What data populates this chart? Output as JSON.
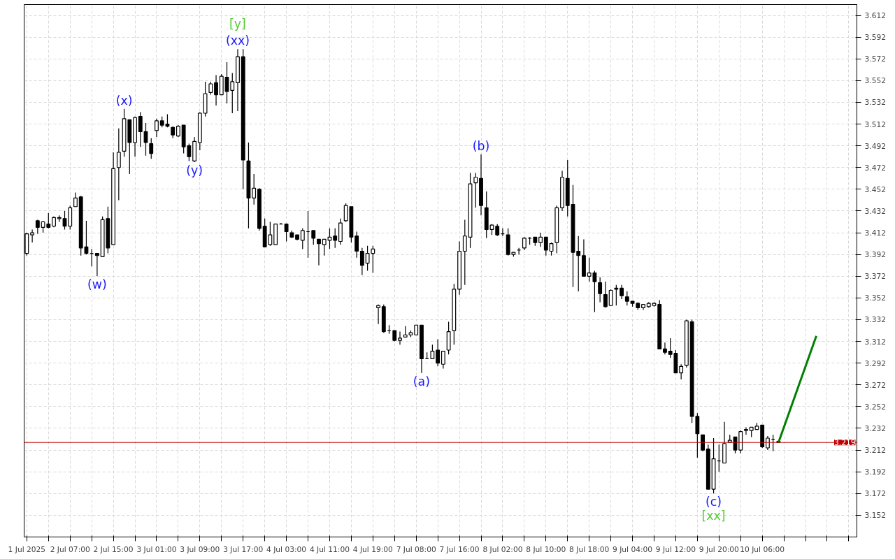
{
  "chart_data": {
    "type": "candlestick",
    "categories": [
      "1 Jul 2025",
      null,
      null,
      null,
      null,
      null,
      null,
      null,
      "2 Jul 07:00",
      null,
      null,
      null,
      null,
      null,
      null,
      null,
      "2 Jul 15:00",
      null,
      null,
      null,
      null,
      null,
      null,
      null,
      "3 Jul 01:00",
      null,
      null,
      null,
      null,
      null,
      null,
      null,
      "3 Jul 09:00",
      null,
      null,
      null,
      null,
      null,
      null,
      null,
      "3 Jul 17:00",
      null,
      null,
      null,
      null,
      null,
      null,
      null,
      "4 Jul 03:00",
      null,
      null,
      null,
      null,
      null,
      null,
      null,
      "4 Jul 11:00",
      null,
      null,
      null,
      null,
      null,
      null,
      null,
      "4 Jul 19:00",
      null,
      null,
      null,
      null,
      null,
      null,
      null,
      "7 Jul 08:00",
      null,
      null,
      null,
      null,
      null,
      null,
      null,
      "7 Jul 16:00",
      null,
      null,
      null,
      null,
      null,
      null,
      null,
      "8 Jul 02:00",
      null,
      null,
      null,
      null,
      null,
      null,
      null,
      "8 Jul 10:00",
      null,
      null,
      null,
      null,
      null,
      null,
      null,
      "8 Jul 18:00",
      null,
      null,
      null,
      null,
      null,
      null,
      null,
      "9 Jul 04:00",
      null,
      null,
      null,
      null,
      null,
      null,
      null,
      "9 Jul 12:00",
      null,
      null,
      null,
      null,
      null,
      null,
      null,
      "9 Jul 20:00",
      null,
      null,
      null,
      null,
      null,
      null,
      null,
      "10 Jul 06:00",
      null,
      null,
      null,
      null,
      null,
      null,
      null,
      null,
      null,
      null,
      null,
      null,
      null,
      null,
      null,
      null,
      null
    ],
    "ohlc": [
      [
        3.393,
        3.412,
        3.391,
        3.411
      ],
      [
        3.41,
        3.415,
        3.403,
        3.412
      ],
      [
        3.423,
        3.424,
        3.411,
        3.417
      ],
      [
        3.417,
        3.423,
        3.412,
        3.422
      ],
      [
        3.42,
        3.43,
        3.416,
        3.417
      ],
      [
        3.418,
        3.427,
        3.417,
        3.426
      ],
      [
        3.425,
        3.428,
        3.422,
        3.426
      ],
      [
        3.425,
        3.432,
        3.415,
        3.418
      ],
      [
        3.418,
        3.437,
        3.415,
        3.435
      ],
      [
        3.436,
        3.449,
        3.436,
        3.444
      ],
      [
        3.445,
        3.446,
        3.391,
        3.398
      ],
      [
        3.399,
        3.423,
        3.392,
        3.393
      ],
      [
        3.393,
        3.397,
        3.381,
        3.393
      ],
      [
        3.393,
        3.393,
        3.372,
        3.391
      ],
      [
        3.39,
        3.427,
        3.39,
        3.424
      ],
      [
        3.425,
        3.436,
        3.393,
        3.398
      ],
      [
        3.401,
        3.486,
        3.401,
        3.471
      ],
      [
        3.472,
        3.508,
        3.442,
        3.486
      ],
      [
        3.487,
        3.526,
        3.482,
        3.517
      ],
      [
        3.516,
        3.516,
        3.466,
        3.495
      ],
      [
        3.495,
        3.519,
        3.482,
        3.518
      ],
      [
        3.519,
        3.523,
        3.491,
        3.505
      ],
      [
        3.505,
        3.513,
        3.483,
        3.495
      ],
      [
        3.494,
        3.499,
        3.48,
        3.485
      ],
      [
        3.506,
        3.517,
        3.5,
        3.515
      ],
      [
        3.515,
        3.519,
        3.509,
        3.511
      ],
      [
        3.512,
        3.521,
        3.509,
        3.51
      ],
      [
        3.509,
        3.51,
        3.499,
        3.502
      ],
      [
        3.501,
        3.511,
        3.5,
        3.51
      ],
      [
        3.511,
        3.511,
        3.485,
        3.491
      ],
      [
        3.492,
        3.494,
        3.478,
        3.482
      ],
      [
        3.478,
        3.5,
        3.477,
        3.496
      ],
      [
        3.495,
        3.523,
        3.488,
        3.522
      ],
      [
        3.522,
        3.551,
        3.519,
        3.54
      ],
      [
        3.541,
        3.551,
        3.539,
        3.549
      ],
      [
        3.55,
        3.557,
        3.529,
        3.539
      ],
      [
        3.539,
        3.558,
        3.539,
        3.556
      ],
      [
        3.555,
        3.569,
        3.531,
        3.542
      ],
      [
        3.543,
        3.559,
        3.522,
        3.551
      ],
      [
        3.55,
        3.581,
        3.524,
        3.574
      ],
      [
        3.574,
        3.581,
        3.452,
        3.479
      ],
      [
        3.478,
        3.495,
        3.416,
        3.444
      ],
      [
        3.444,
        3.466,
        3.438,
        3.453
      ],
      [
        3.452,
        3.453,
        3.414,
        3.416
      ],
      [
        3.418,
        3.425,
        3.399,
        3.399
      ],
      [
        3.401,
        3.422,
        3.4,
        3.41
      ],
      [
        3.401,
        3.42,
        3.401,
        3.42
      ],
      [
        3.42,
        3.421,
        3.42,
        3.42
      ],
      [
        3.42,
        3.42,
        3.404,
        3.413
      ],
      [
        3.412,
        3.414,
        3.407,
        3.408
      ],
      [
        3.41,
        3.41,
        3.405,
        3.406
      ],
      [
        3.405,
        3.416,
        3.397,
        3.414
      ],
      [
        3.413,
        3.432,
        3.389,
        3.413
      ],
      [
        3.414,
        3.414,
        3.401,
        3.407
      ],
      [
        3.406,
        3.406,
        3.382,
        3.402
      ],
      [
        3.401,
        3.406,
        3.391,
        3.406
      ],
      [
        3.405,
        3.416,
        3.397,
        3.408
      ],
      [
        3.409,
        3.416,
        3.398,
        3.405
      ],
      [
        3.404,
        3.425,
        3.401,
        3.421
      ],
      [
        3.423,
        3.439,
        3.422,
        3.437
      ],
      [
        3.436,
        3.436,
        3.403,
        3.408
      ],
      [
        3.409,
        3.413,
        3.389,
        3.395
      ],
      [
        3.395,
        3.398,
        3.373,
        3.382
      ],
      [
        3.384,
        3.4,
        3.377,
        3.393
      ],
      [
        3.393,
        3.4,
        3.375,
        3.397
      ],
      [
        3.343,
        3.346,
        3.328,
        3.345
      ],
      [
        3.344,
        3.346,
        3.32,
        3.321
      ],
      [
        3.322,
        3.327,
        3.319,
        3.322
      ],
      [
        3.322,
        3.322,
        3.312,
        3.313
      ],
      [
        3.313,
        3.321,
        3.309,
        3.315
      ],
      [
        3.316,
        3.326,
        3.316,
        3.318
      ],
      [
        3.318,
        3.322,
        3.316,
        3.32
      ],
      [
        3.318,
        3.327,
        3.318,
        3.327
      ],
      [
        3.327,
        3.327,
        3.283,
        3.296
      ],
      [
        3.296,
        3.302,
        3.296,
        3.296
      ],
      [
        3.296,
        3.309,
        3.296,
        3.303
      ],
      [
        3.304,
        3.314,
        3.289,
        3.292
      ],
      [
        3.291,
        3.303,
        3.287,
        3.303
      ],
      [
        3.304,
        3.33,
        3.3,
        3.321
      ],
      [
        3.322,
        3.365,
        3.309,
        3.36
      ],
      [
        3.36,
        3.404,
        3.355,
        3.395
      ],
      [
        3.395,
        3.424,
        3.364,
        3.409
      ],
      [
        3.408,
        3.467,
        3.398,
        3.457
      ],
      [
        3.458,
        3.467,
        3.435,
        3.463
      ],
      [
        3.462,
        3.484,
        3.428,
        3.437
      ],
      [
        3.435,
        3.45,
        3.407,
        3.415
      ],
      [
        3.415,
        3.42,
        3.41,
        3.419
      ],
      [
        3.418,
        3.42,
        3.409,
        3.41
      ],
      [
        3.411,
        3.416,
        3.409,
        3.411
      ],
      [
        3.41,
        3.416,
        3.391,
        3.392
      ],
      [
        3.392,
        3.394,
        3.39,
        3.394
      ],
      [
        3.396,
        3.398,
        3.392,
        3.396
      ],
      [
        3.398,
        3.408,
        3.396,
        3.407
      ],
      [
        3.407,
        3.408,
        3.401,
        3.407
      ],
      [
        3.408,
        3.408,
        3.4,
        3.403
      ],
      [
        3.403,
        3.412,
        3.399,
        3.408
      ],
      [
        3.408,
        3.408,
        3.391,
        3.396
      ],
      [
        3.395,
        3.403,
        3.391,
        3.402
      ],
      [
        3.403,
        3.437,
        3.393,
        3.435
      ],
      [
        3.435,
        3.469,
        3.432,
        3.463
      ],
      [
        3.462,
        3.479,
        3.427,
        3.437
      ],
      [
        3.438,
        3.456,
        3.362,
        3.394
      ],
      [
        3.395,
        3.409,
        3.358,
        3.391
      ],
      [
        3.391,
        3.406,
        3.372,
        3.372
      ],
      [
        3.372,
        3.389,
        3.367,
        3.375
      ],
      [
        3.375,
        3.377,
        3.339,
        3.367
      ],
      [
        3.366,
        3.371,
        3.348,
        3.356
      ],
      [
        3.355,
        3.367,
        3.343,
        3.344
      ],
      [
        3.345,
        3.36,
        3.345,
        3.359
      ],
      [
        3.361,
        3.364,
        3.345,
        3.36
      ],
      [
        3.361,
        3.364,
        3.351,
        3.354
      ],
      [
        3.353,
        3.358,
        3.345,
        3.349
      ],
      [
        3.349,
        3.349,
        3.344,
        3.347
      ],
      [
        3.347,
        3.348,
        3.341,
        3.343
      ],
      [
        3.343,
        3.346,
        3.341,
        3.346
      ],
      [
        3.344,
        3.348,
        3.343,
        3.347
      ],
      [
        3.345,
        3.348,
        3.344,
        3.347
      ],
      [
        3.346,
        3.35,
        3.305,
        3.305
      ],
      [
        3.305,
        3.311,
        3.3,
        3.302
      ],
      [
        3.303,
        3.315,
        3.297,
        3.3
      ],
      [
        3.301,
        3.304,
        3.283,
        3.283
      ],
      [
        3.283,
        3.291,
        3.277,
        3.289
      ],
      [
        3.29,
        3.332,
        3.288,
        3.331
      ],
      [
        3.33,
        3.332,
        3.237,
        3.243
      ],
      [
        3.243,
        3.246,
        3.205,
        3.227
      ],
      [
        3.226,
        3.226,
        3.211,
        3.212
      ],
      [
        3.213,
        3.217,
        3.176,
        3.176
      ],
      [
        3.176,
        3.223,
        3.172,
        3.204
      ],
      [
        3.202,
        3.217,
        3.192,
        3.202
      ],
      [
        3.2,
        3.238,
        3.2,
        3.218
      ],
      [
        3.219,
        3.226,
        3.219,
        3.221
      ],
      [
        3.224,
        3.224,
        3.209,
        3.212
      ],
      [
        3.212,
        3.23,
        3.209,
        3.229
      ],
      [
        3.23,
        3.233,
        3.226,
        3.231
      ],
      [
        3.23,
        3.233,
        3.224,
        3.233
      ],
      [
        3.231,
        3.237,
        3.231,
        3.234
      ],
      [
        3.235,
        3.235,
        3.214,
        3.215
      ],
      [
        3.214,
        3.225,
        3.212,
        3.223
      ],
      [
        3.222,
        3.226,
        3.211,
        3.222
      ],
      [
        3.22,
        3.221,
        3.219,
        3.219
      ],
      null,
      null,
      null,
      null,
      null,
      null,
      null,
      null,
      null,
      null,
      null,
      null,
      null,
      null
    ],
    "series": [
      {
        "type": "line",
        "values": [
          null,
          null,
          null,
          null,
          null,
          null,
          null,
          null,
          null,
          null,
          null,
          null,
          null,
          null,
          null,
          null,
          null,
          null,
          null,
          null,
          null,
          null,
          null,
          null,
          null,
          null,
          null,
          null,
          null,
          null,
          null,
          null,
          null,
          null,
          null,
          null,
          null,
          null,
          null,
          null,
          null,
          null,
          null,
          null,
          null,
          null,
          null,
          null,
          null,
          null,
          null,
          null,
          null,
          null,
          null,
          null,
          null,
          null,
          null,
          null,
          null,
          null,
          null,
          null,
          null,
          null,
          null,
          null,
          null,
          null,
          null,
          null,
          null,
          null,
          null,
          null,
          null,
          null,
          null,
          null,
          null,
          null,
          null,
          null,
          null,
          null,
          null,
          null,
          null,
          null,
          null,
          null,
          null,
          null,
          null,
          null,
          null,
          null,
          null,
          null,
          null,
          null,
          null,
          null,
          null,
          null,
          null,
          null,
          null,
          null,
          null,
          null,
          null,
          null,
          null,
          null,
          null,
          null,
          null,
          null,
          null,
          null,
          null,
          null,
          null,
          null,
          null,
          null,
          null,
          null,
          null,
          null,
          null,
          null,
          null,
          null,
          null,
          null,
          null,
          3.219,
          null,
          null,
          null,
          null,
          null,
          null,
          3.317,
          null,
          null,
          null,
          null,
          null,
          null,
          null
        ],
        "color": "#008000"
      }
    ],
    "ylim": [
      3.132,
      3.622
    ],
    "yticks": [
      3.152,
      3.172,
      3.192,
      3.212,
      3.232,
      3.252,
      3.272,
      3.292,
      3.312,
      3.332,
      3.352,
      3.372,
      3.392,
      3.412,
      3.432,
      3.452,
      3.472,
      3.492,
      3.512,
      3.532,
      3.552,
      3.572,
      3.592,
      3.612
    ],
    "grid": true,
    "ref_lines": [
      {
        "axis": "y",
        "value": 3.219,
        "label": "3.219",
        "color": "#c00000"
      }
    ],
    "annotations": [
      {
        "text": "(w)",
        "y": 3.372
      },
      {
        "text": "(x)",
        "y": 3.526
      },
      {
        "text": "(y)",
        "y": 3.477
      },
      {
        "text": "(xx)",
        "y": 3.581
      },
      {
        "text": "[y]",
        "y": 3.581
      },
      {
        "text": "(a)",
        "y": 3.283
      },
      {
        "text": "(b)",
        "y": 3.484
      },
      {
        "text": "(c)",
        "y": 3.172
      },
      {
        "text": "[xx]",
        "y": 3.172
      }
    ]
  }
}
